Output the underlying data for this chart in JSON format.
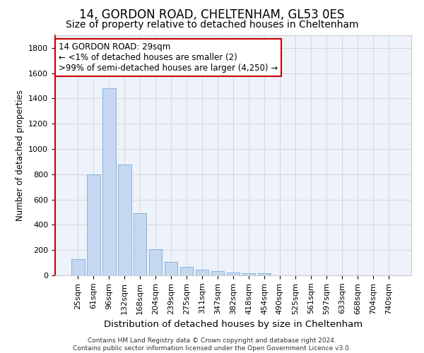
{
  "title1": "14, GORDON ROAD, CHELTENHAM, GL53 0ES",
  "title2": "Size of property relative to detached houses in Cheltenham",
  "xlabel": "Distribution of detached houses by size in Cheltenham",
  "ylabel": "Number of detached properties",
  "categories": [
    "25sqm",
    "61sqm",
    "96sqm",
    "132sqm",
    "168sqm",
    "204sqm",
    "239sqm",
    "275sqm",
    "311sqm",
    "347sqm",
    "382sqm",
    "418sqm",
    "454sqm",
    "490sqm",
    "525sqm",
    "561sqm",
    "597sqm",
    "633sqm",
    "668sqm",
    "704sqm",
    "740sqm"
  ],
  "values": [
    130,
    800,
    1480,
    880,
    490,
    205,
    105,
    65,
    45,
    35,
    25,
    18,
    18,
    0,
    0,
    0,
    0,
    0,
    0,
    0,
    0
  ],
  "bar_color": "#c5d8f0",
  "bar_edge_color": "#7aadd4",
  "highlight_left_color": "#cc0000",
  "annotation_text": "14 GORDON ROAD: 29sqm\n← <1% of detached houses are smaller (2)\n>99% of semi-detached houses are larger (4,250) →",
  "annotation_box_color": "#ffffff",
  "annotation_box_edge": "#cc0000",
  "ylim": [
    0,
    1900
  ],
  "yticks": [
    0,
    200,
    400,
    600,
    800,
    1000,
    1200,
    1400,
    1600,
    1800
  ],
  "background_color": "#edf2fb",
  "footer_text": "Contains HM Land Registry data © Crown copyright and database right 2024.\nContains public sector information licensed under the Open Government Licence v3.0.",
  "title1_fontsize": 12,
  "title2_fontsize": 10,
  "xlabel_fontsize": 9.5,
  "ylabel_fontsize": 8.5,
  "tick_fontsize": 8,
  "annotation_fontsize": 8.5,
  "footer_fontsize": 6.5
}
